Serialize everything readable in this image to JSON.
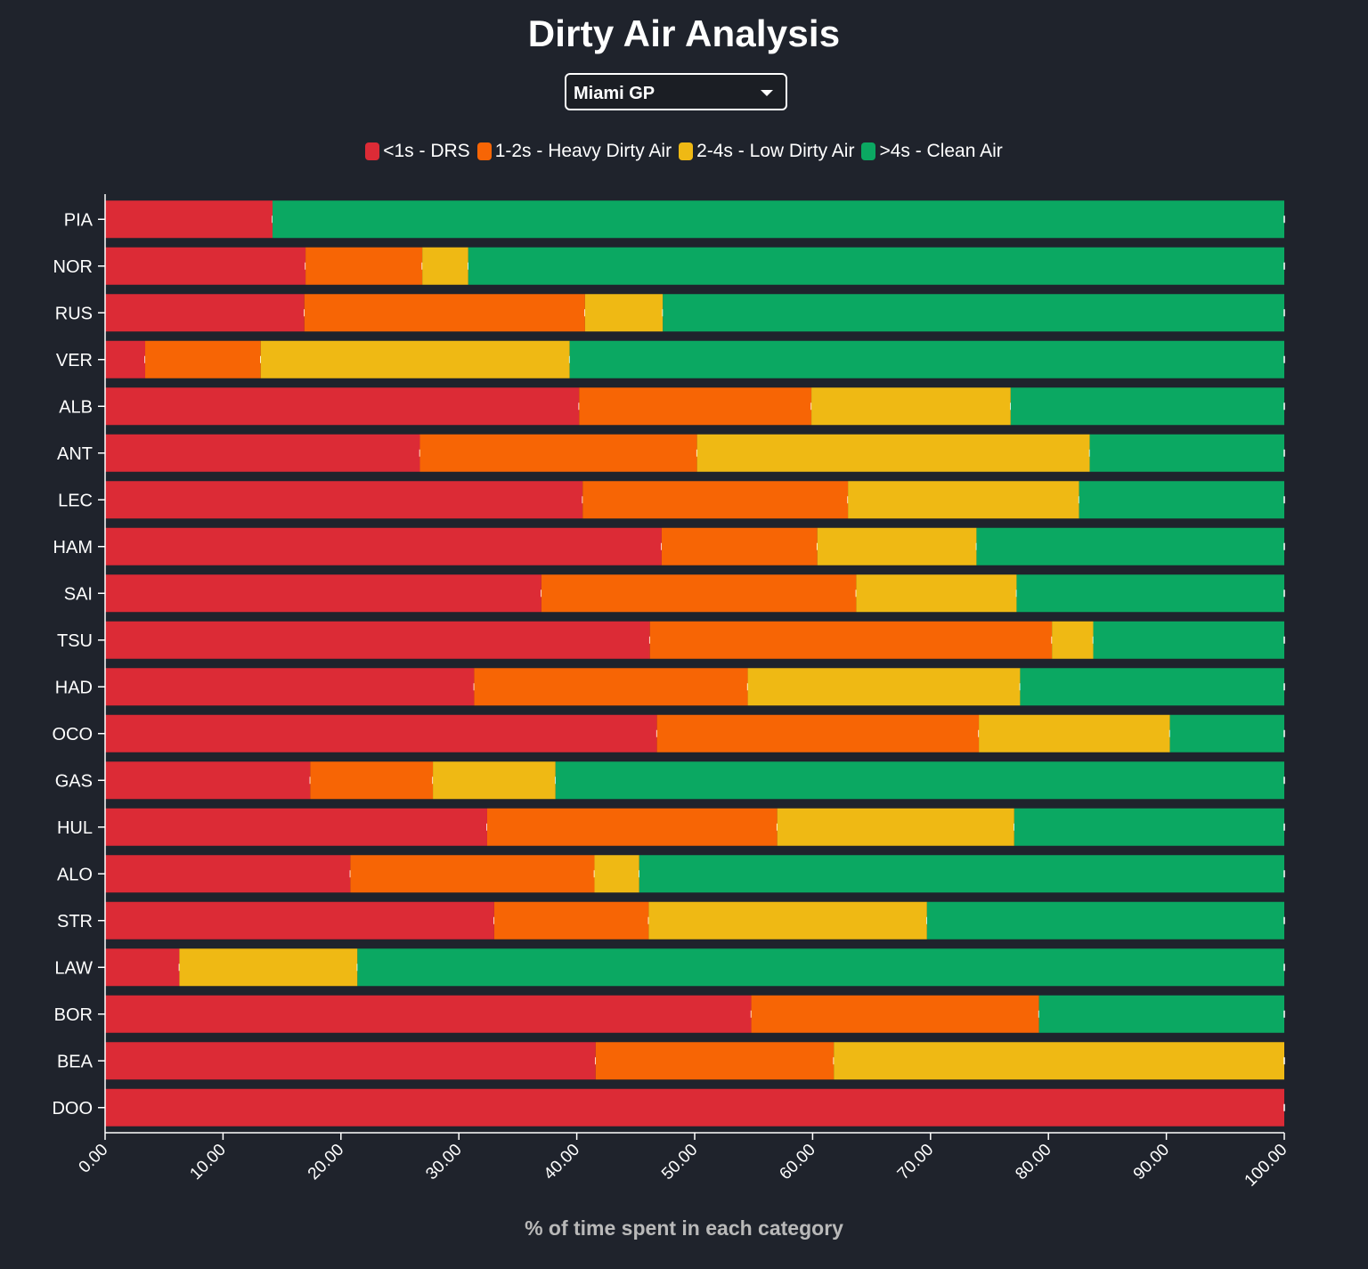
{
  "title": "Dirty Air Analysis",
  "race_select": {
    "selected": "Miami GP"
  },
  "legend": [
    {
      "label": "<1s - DRS",
      "color": "#dc2b36"
    },
    {
      "label": "1-2s - Heavy Dirty Air",
      "color": "#f76505"
    },
    {
      "label": "2-4s - Low Dirty Air",
      "color": "#efb914"
    },
    {
      "label": ">4s - Clean Air",
      "color": "#0ba862"
    }
  ],
  "xlabel": "% of time spent in each category",
  "chart_data": {
    "type": "bar",
    "orientation": "horizontal",
    "stacked": true,
    "title": "Dirty Air Analysis",
    "xlabel": "% of time spent in each category",
    "ylabel": "",
    "xlim": [
      0,
      100
    ],
    "xticks": [
      "0.00",
      "10.00",
      "20.00",
      "30.00",
      "40.00",
      "50.00",
      "60.00",
      "70.00",
      "80.00",
      "90.00",
      "100.00"
    ],
    "legend_position": "top-center",
    "grid": false,
    "categories": [
      "PIA",
      "NOR",
      "RUS",
      "VER",
      "ALB",
      "ANT",
      "LEC",
      "HAM",
      "SAI",
      "TSU",
      "HAD",
      "OCO",
      "GAS",
      "HUL",
      "ALO",
      "STR",
      "LAW",
      "BOR",
      "BEA",
      "DOO"
    ],
    "series": [
      {
        "name": "<1s - DRS",
        "color": "#dc2b36",
        "values": [
          14.2,
          17.0,
          16.9,
          3.4,
          40.2,
          26.7,
          40.5,
          47.2,
          37.0,
          46.2,
          31.3,
          46.8,
          17.4,
          32.4,
          20.8,
          33.0,
          6.3,
          54.8,
          41.6,
          100.0
        ]
      },
      {
        "name": "1-2s - Heavy Dirty Air",
        "color": "#f76505",
        "values": [
          0.0,
          9.9,
          23.8,
          9.8,
          19.7,
          23.5,
          22.5,
          13.2,
          26.7,
          34.1,
          23.2,
          27.3,
          10.4,
          24.6,
          20.7,
          13.1,
          0.0,
          24.4,
          20.2,
          0.0
        ]
      },
      {
        "name": "2-4s - Low Dirty Air",
        "color": "#efb914",
        "values": [
          0.0,
          3.9,
          6.6,
          26.2,
          16.9,
          33.3,
          19.6,
          13.5,
          13.6,
          3.5,
          23.1,
          16.2,
          10.4,
          20.1,
          3.8,
          23.6,
          15.1,
          0.0,
          38.2,
          0.0
        ]
      },
      {
        "name": ">4s - Clean Air",
        "color": "#0ba862",
        "values": [
          85.8,
          69.2,
          52.7,
          60.6,
          23.2,
          16.5,
          17.4,
          26.1,
          22.7,
          16.2,
          22.4,
          9.7,
          61.8,
          22.9,
          54.7,
          30.3,
          78.6,
          20.8,
          0.0,
          0.0
        ]
      }
    ]
  }
}
